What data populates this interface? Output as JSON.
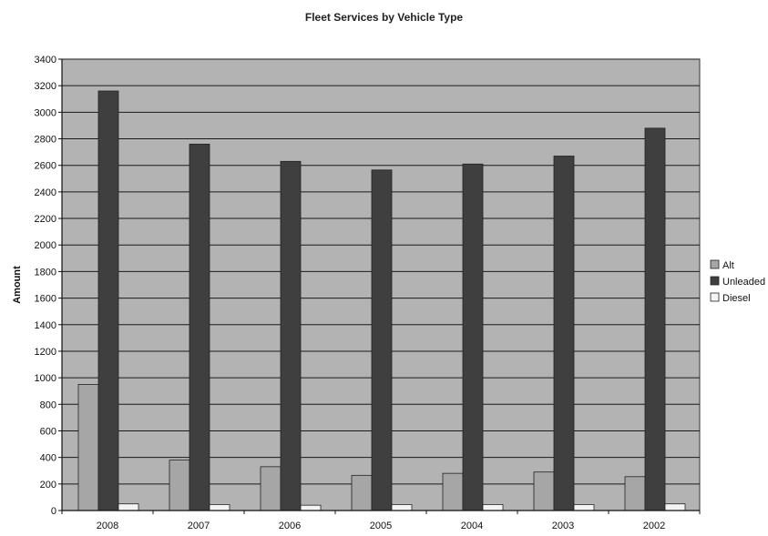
{
  "chart_data": {
    "type": "bar",
    "title": "Fleet Services by Vehicle Type",
    "xlabel": "",
    "ylabel": "Amount",
    "ylim": [
      0,
      3400
    ],
    "yticks": [
      0,
      200,
      400,
      600,
      800,
      1000,
      1200,
      1400,
      1600,
      1800,
      2000,
      2200,
      2400,
      2600,
      2800,
      3000,
      3200,
      3400
    ],
    "grid": true,
    "legend_position": "right",
    "categories": [
      "2008",
      "2007",
      "2006",
      "2005",
      "2004",
      "2003",
      "2002"
    ],
    "series": [
      {
        "name": "Alt",
        "color": "#a6a6a6",
        "values": [
          950,
          380,
          330,
          265,
          280,
          290,
          255
        ]
      },
      {
        "name": "Unleaded",
        "color": "#3f3f3f",
        "values": [
          3160,
          2760,
          2630,
          2565,
          2610,
          2670,
          2880
        ]
      },
      {
        "name": "Diesel",
        "color": "#f4f4f4",
        "values": [
          50,
          45,
          40,
          45,
          45,
          45,
          50
        ]
      }
    ],
    "plot_background": "#b3b3b3"
  }
}
